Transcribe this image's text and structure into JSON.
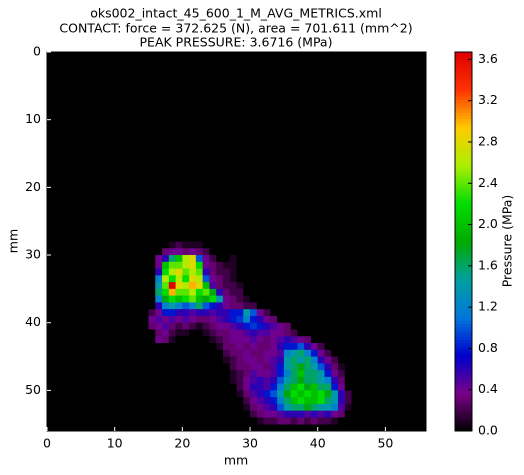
{
  "chart_data": {
    "type": "heatmap",
    "title": "oks002_intact_45_600_1_M_AVG_METRICS.xml",
    "subtitle": "CONTACT: force = 372.625 (N), area = 701.611 (mm^2)",
    "annotation": "PEAK PRESSURE: 3.6716 (MPa)",
    "xlabel": "mm",
    "ylabel": "mm",
    "colorbar_label": "Pressure (MPa)",
    "xlim": [
      0,
      56
    ],
    "ylim": [
      56,
      0
    ],
    "xticks": [
      0,
      10,
      20,
      30,
      40,
      50
    ],
    "yticks": [
      0,
      10,
      20,
      30,
      40,
      50
    ],
    "clim": [
      0,
      3.6716
    ],
    "cticks": [
      {
        "value": 0,
        "label": "0.0"
      },
      0.4,
      0.8,
      1.2,
      1.6,
      {
        "value": 2,
        "label": "2.0"
      },
      2.4,
      2.8,
      3.2,
      3.6
    ],
    "colormap": [
      "#000000",
      "#7a0088",
      "#0000cc",
      "#0077dd",
      "#00a0a0",
      "#00aa00",
      "#00dd00",
      "#aaee00",
      "#ffcc00",
      "#ff3300",
      "#dd0000"
    ],
    "x": [
      13,
      14,
      15,
      16,
      17,
      18,
      19,
      20,
      21,
      22,
      23,
      24,
      25,
      26,
      27,
      28,
      29,
      30,
      31,
      32,
      33,
      34,
      35,
      36,
      37,
      38,
      39,
      40,
      41,
      42,
      43,
      44,
      45,
      46
    ],
    "y": [
      28,
      29,
      30,
      31,
      32,
      33,
      34,
      35,
      36,
      37,
      38,
      39,
      40,
      41,
      42,
      43,
      44,
      45,
      46,
      47,
      48,
      49,
      50,
      51,
      52,
      53,
      54
    ],
    "z": [
      [
        0,
        0,
        0,
        0,
        0,
        0.1,
        0.2,
        0.1,
        0.1,
        0.1,
        0,
        0,
        0,
        0,
        0,
        0,
        0,
        0,
        0,
        0,
        0,
        0,
        0,
        0,
        0,
        0,
        0,
        0,
        0,
        0,
        0,
        0,
        0,
        0
      ],
      [
        0,
        0,
        0,
        0,
        0.3,
        0.4,
        0.4,
        0.3,
        0.4,
        0.3,
        0.2,
        0,
        0,
        0,
        0,
        0,
        0,
        0,
        0,
        0,
        0,
        0,
        0,
        0,
        0,
        0,
        0,
        0,
        0,
        0,
        0,
        0,
        0,
        0
      ],
      [
        0,
        0,
        0,
        0.4,
        0.6,
        1.6,
        2.0,
        2.6,
        2.8,
        1.0,
        0.4,
        0.2,
        0,
        0,
        0.1,
        0,
        0,
        0,
        0,
        0,
        0,
        0,
        0,
        0,
        0,
        0,
        0,
        0,
        0,
        0,
        0,
        0,
        0,
        0
      ],
      [
        0,
        0,
        0,
        0.4,
        2.0,
        2.4,
        2.4,
        2.6,
        2.8,
        2.2,
        0.4,
        0.3,
        0.2,
        0.1,
        0.1,
        0,
        0,
        0,
        0,
        0,
        0,
        0,
        0,
        0,
        0,
        0,
        0,
        0,
        0,
        0,
        0,
        0,
        0,
        0
      ],
      [
        0,
        0,
        0,
        0.6,
        2.2,
        2.6,
        2.8,
        2.4,
        2.6,
        2.4,
        0.6,
        0.3,
        0.2,
        0.2,
        0.1,
        0,
        0,
        0,
        0,
        0,
        0,
        0,
        0,
        0,
        0,
        0,
        0,
        0,
        0,
        0,
        0,
        0,
        0,
        0
      ],
      [
        0,
        0,
        0,
        1.2,
        2.6,
        2.2,
        2.6,
        2.2,
        2.8,
        2.6,
        1.0,
        0.4,
        0.3,
        0.2,
        0.1,
        0,
        0,
        0,
        0,
        0,
        0,
        0,
        0,
        0,
        0,
        0,
        0,
        0,
        0,
        0,
        0,
        0,
        0,
        0
      ],
      [
        0,
        0,
        0,
        1.4,
        2.4,
        3.6716,
        2.8,
        2.6,
        3.0,
        2.8,
        2.0,
        0.5,
        0.3,
        0.2,
        0.2,
        0.1,
        0,
        0,
        0,
        0,
        0,
        0,
        0,
        0,
        0,
        0,
        0,
        0,
        0,
        0,
        0,
        0,
        0,
        0
      ],
      [
        0,
        0,
        0,
        1.6,
        2.2,
        3.0,
        2.4,
        2.4,
        2.6,
        2.2,
        2.4,
        1.8,
        0.6,
        0.3,
        0.2,
        0.2,
        0,
        0,
        0,
        0,
        0,
        0,
        0,
        0,
        0,
        0,
        0,
        0,
        0,
        0,
        0,
        0,
        0,
        0
      ],
      [
        0,
        0,
        0,
        1.2,
        1.8,
        2.2,
        2.0,
        2.2,
        2.4,
        2.0,
        1.8,
        2.2,
        1.4,
        0.4,
        0.3,
        0.2,
        0.1,
        0,
        0,
        0,
        0,
        0,
        0,
        0,
        0,
        0,
        0,
        0,
        0,
        0,
        0,
        0,
        0,
        0
      ],
      [
        0,
        0,
        0,
        0.6,
        1.2,
        1.4,
        1.2,
        1.0,
        1.2,
        1.6,
        1.0,
        0.8,
        0.6,
        0.4,
        0.3,
        0.3,
        0.2,
        0.2,
        0,
        0,
        0,
        0,
        0,
        0,
        0,
        0,
        0,
        0,
        0,
        0,
        0,
        0,
        0,
        0
      ],
      [
        0,
        0,
        0.2,
        0.4,
        0.8,
        0.8,
        0.6,
        0.6,
        0.5,
        0.6,
        0.6,
        0.5,
        0.6,
        0.6,
        0.8,
        0.8,
        1.4,
        1.0,
        0.4,
        0.2,
        0,
        0,
        0,
        0,
        0,
        0,
        0,
        0,
        0,
        0,
        0,
        0,
        0,
        0
      ],
      [
        0,
        0,
        0.4,
        0.5,
        0.4,
        0.5,
        0.4,
        0.5,
        0.4,
        0.3,
        0.3,
        0.4,
        0.5,
        0.6,
        0.8,
        0.9,
        1.2,
        0.8,
        0.6,
        0.4,
        0.3,
        0,
        0,
        0,
        0,
        0,
        0,
        0,
        0,
        0,
        0,
        0,
        0,
        0
      ],
      [
        0,
        0,
        0.3,
        0.4,
        0.5,
        0.3,
        0.2,
        0.3,
        0.2,
        0.1,
        0.2,
        0.3,
        0.4,
        0.4,
        0.5,
        0.6,
        0.8,
        0.9,
        0.8,
        0.6,
        0.5,
        0.4,
        0.3,
        0,
        0,
        0,
        0,
        0,
        0,
        0,
        0,
        0,
        0,
        0
      ],
      [
        0,
        0,
        0,
        0.3,
        0.4,
        0.2,
        0.1,
        0.1,
        0,
        0,
        0.1,
        0.2,
        0.3,
        0.3,
        0.4,
        0.4,
        0.5,
        0.6,
        0.5,
        0.5,
        0.4,
        0.4,
        0.3,
        0.2,
        0,
        0,
        0,
        0,
        0,
        0,
        0,
        0,
        0,
        0
      ],
      [
        0,
        0,
        0,
        0.4,
        0.3,
        0.1,
        0,
        0,
        0,
        0,
        0,
        0.1,
        0.2,
        0.3,
        0.4,
        0.4,
        0.4,
        0.5,
        0.4,
        0.3,
        0.4,
        0.5,
        0.6,
        0.5,
        0.4,
        0.3,
        0,
        0,
        0,
        0,
        0,
        0,
        0,
        0
      ],
      [
        0,
        0,
        0,
        0,
        0,
        0,
        0,
        0,
        0,
        0,
        0,
        0,
        0.1,
        0.3,
        0.3,
        0.4,
        0.3,
        0.4,
        0.3,
        0.3,
        0.4,
        0.6,
        0.8,
        0.8,
        1.0,
        0.6,
        0.4,
        0.2,
        0,
        0,
        0,
        0,
        0,
        0
      ],
      [
        0,
        0,
        0,
        0,
        0,
        0,
        0,
        0,
        0,
        0,
        0,
        0,
        0,
        0.2,
        0.3,
        0.3,
        0.4,
        0.3,
        0.3,
        0.4,
        0.4,
        0.5,
        1.2,
        1.4,
        1.6,
        1.2,
        0.8,
        0.4,
        0.2,
        0,
        0,
        0,
        0,
        0
      ],
      [
        0,
        0,
        0,
        0,
        0,
        0,
        0,
        0,
        0,
        0,
        0,
        0,
        0,
        0.1,
        0.2,
        0.3,
        0.4,
        0.4,
        0.3,
        0.4,
        0.5,
        0.6,
        1.4,
        1.6,
        1.4,
        1.6,
        1.2,
        0.6,
        0.4,
        0.2,
        0,
        0,
        0,
        0
      ],
      [
        0,
        0,
        0,
        0,
        0,
        0,
        0,
        0,
        0,
        0,
        0,
        0,
        0,
        0,
        0.2,
        0.3,
        0.3,
        0.4,
        0.4,
        0.3,
        0.5,
        0.8,
        1.4,
        1.6,
        1.8,
        1.6,
        1.4,
        1.0,
        0.6,
        0.3,
        0.1,
        0,
        0,
        0
      ],
      [
        0,
        0,
        0,
        0,
        0,
        0,
        0,
        0,
        0,
        0,
        0,
        0,
        0,
        0,
        0.1,
        0.2,
        0.3,
        0.5,
        0.4,
        0.4,
        0.5,
        0.8,
        1.2,
        1.6,
        2.0,
        1.6,
        1.6,
        1.4,
        0.8,
        0.4,
        0.2,
        0,
        0,
        0
      ],
      [
        0,
        0,
        0,
        0,
        0,
        0,
        0,
        0,
        0,
        0,
        0,
        0,
        0,
        0,
        0.1,
        0.2,
        0.4,
        0.5,
        0.6,
        0.5,
        0.6,
        1.0,
        1.4,
        1.6,
        1.8,
        1.6,
        1.6,
        1.4,
        1.2,
        0.6,
        0.3,
        0,
        0,
        0
      ],
      [
        0,
        0,
        0,
        0,
        0,
        0,
        0,
        0,
        0,
        0,
        0,
        0,
        0,
        0,
        0,
        0.2,
        0.4,
        0.6,
        0.6,
        0.5,
        0.8,
        1.2,
        1.6,
        2.0,
        2.2,
        1.8,
        2.0,
        1.6,
        1.6,
        0.8,
        0.4,
        0,
        0,
        0
      ],
      [
        0,
        0,
        0,
        0,
        0,
        0,
        0,
        0,
        0,
        0,
        0,
        0,
        0,
        0,
        0,
        0.1,
        0.3,
        0.5,
        0.6,
        0.8,
        1.0,
        1.4,
        1.8,
        2.2,
        2.0,
        2.2,
        2.0,
        2.2,
        1.8,
        1.4,
        0.6,
        0.2,
        0,
        0
      ],
      [
        0,
        0,
        0,
        0,
        0,
        0,
        0,
        0,
        0,
        0,
        0,
        0,
        0,
        0,
        0,
        0,
        0.2,
        0.4,
        0.5,
        0.6,
        0.8,
        1.2,
        1.6,
        2.0,
        2.2,
        2.0,
        2.0,
        2.2,
        1.6,
        1.4,
        0.6,
        0.2,
        0,
        0
      ],
      [
        0,
        0,
        0,
        0,
        0,
        0,
        0,
        0,
        0,
        0,
        0,
        0,
        0,
        0,
        0,
        0,
        0.1,
        0.3,
        0.4,
        0.5,
        0.6,
        1.0,
        1.4,
        1.6,
        1.6,
        1.8,
        1.6,
        1.4,
        1.4,
        1.2,
        0.5,
        0.1,
        0,
        0
      ],
      [
        0,
        0,
        0,
        0,
        0,
        0,
        0,
        0,
        0,
        0,
        0,
        0,
        0,
        0,
        0,
        0,
        0,
        0.2,
        0.3,
        0.4,
        0.4,
        0.5,
        0.6,
        0.6,
        0.6,
        0.5,
        0.6,
        0.5,
        0.6,
        0.4,
        0.3,
        0,
        0,
        0
      ],
      [
        0,
        0,
        0,
        0,
        0,
        0,
        0,
        0,
        0,
        0,
        0,
        0,
        0,
        0,
        0,
        0,
        0,
        0,
        0.1,
        0.2,
        0.2,
        0.3,
        0.3,
        0.2,
        0.3,
        0.2,
        0.3,
        0.2,
        0.2,
        0.1,
        0,
        0,
        0,
        0
      ]
    ]
  }
}
